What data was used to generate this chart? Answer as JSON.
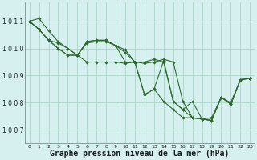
{
  "background_color": "#d6f0f0",
  "grid_color": "#b0d8cc",
  "line_color": "#2d6a2d",
  "marker_color": "#2d6a2d",
  "xlabel": "Graphe pression niveau de la mer (hPa)",
  "xlabel_fontsize": 7,
  "xlim": [
    -0.5,
    23.5
  ],
  "ylim": [
    1006.5,
    1011.7
  ],
  "yticks": [
    1007,
    1008,
    1009,
    1010,
    1011
  ],
  "xticks": [
    0,
    1,
    2,
    3,
    4,
    5,
    6,
    7,
    8,
    9,
    10,
    11,
    12,
    13,
    14,
    15,
    16,
    17,
    18,
    19,
    20,
    21,
    22,
    23
  ],
  "series": [
    [
      1011.0,
      1011.1,
      1010.65,
      1010.25,
      1010.0,
      1009.75,
      1010.25,
      1010.3,
      1010.3,
      1010.1,
      1009.5,
      1009.5,
      1009.5,
      1009.6,
      1009.5,
      1008.05,
      1007.75,
      1008.05,
      1007.4,
      1007.45,
      1008.2,
      1008.0,
      1008.85,
      1008.9
    ],
    [
      1011.0,
      1010.7,
      1010.3,
      1010.2,
      1010.0,
      1009.75,
      1010.2,
      1010.25,
      1010.25,
      1010.1,
      1009.95,
      1009.5,
      1009.45,
      1009.5,
      1009.6,
      1009.5,
      1008.05,
      1007.45,
      1007.4,
      1007.35,
      1008.2,
      1007.95,
      1008.85,
      1008.9
    ],
    [
      1011.0,
      1010.7,
      1010.3,
      1010.0,
      1009.75,
      1009.75,
      1010.25,
      1010.3,
      1010.3,
      1010.1,
      1009.85,
      1009.5,
      1008.3,
      1008.5,
      1009.55,
      1008.05,
      1007.75,
      1007.45,
      1007.4,
      1007.35,
      1008.2,
      1007.95,
      1008.85,
      1008.9
    ],
    [
      1011.0,
      1010.7,
      1010.3,
      1010.0,
      1009.75,
      1009.75,
      1009.5,
      1009.5,
      1009.5,
      1009.5,
      1009.45,
      1009.5,
      1008.3,
      1008.5,
      1008.05,
      1007.75,
      1007.45,
      1007.45,
      1007.4,
      1007.35,
      1008.2,
      1007.95,
      1008.85,
      1008.9
    ]
  ]
}
